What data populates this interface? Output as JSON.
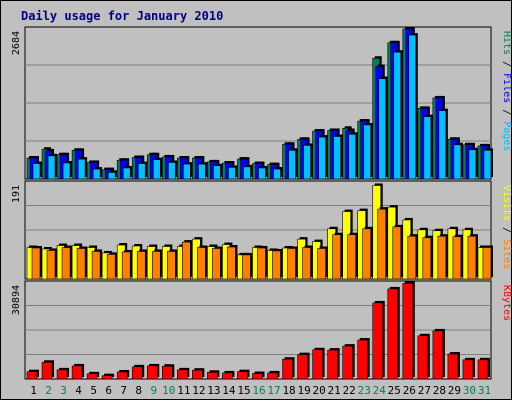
{
  "title": "Daily usage for January 2010",
  "colors": {
    "background": "#c0c0c0",
    "panel": "#c0c0c0",
    "grid": "#808080",
    "title": "#000080",
    "hits": "#00805c",
    "files": "#0000ff",
    "pages": "#00c0ff",
    "visits": "#ffff00",
    "sites": "#ff8000",
    "kbytes": "#ff0000",
    "weekend_day": "#00805c",
    "weekday": "#000000"
  },
  "chart_data": [
    {
      "type": "bar",
      "panel": "top",
      "ymax_label": "2684",
      "ylim": [
        0,
        2684
      ],
      "axis_legend": [
        {
          "text": "Pages",
          "color_key": "pages"
        },
        {
          "text": " / ",
          "color_key": "weekday"
        },
        {
          "text": "Files",
          "color_key": "files"
        },
        {
          "text": " / ",
          "color_key": "weekday"
        },
        {
          "text": "Hits",
          "color_key": "hits"
        }
      ],
      "categories": [
        "1",
        "2",
        "3",
        "4",
        "5",
        "6",
        "7",
        "8",
        "9",
        "10",
        "11",
        "12",
        "13",
        "14",
        "15",
        "16",
        "17",
        "18",
        "19",
        "20",
        "21",
        "22",
        "23",
        "24",
        "25",
        "26",
        "27",
        "28",
        "29",
        "30",
        "31"
      ],
      "series": [
        {
          "name": "Hits",
          "color_key": "hits",
          "values": [
            380,
            540,
            440,
            520,
            300,
            170,
            340,
            390,
            440,
            400,
            380,
            380,
            310,
            290,
            360,
            280,
            260,
            630,
            720,
            870,
            880,
            920,
            1050,
            2190,
            2470,
            2720,
            1280,
            1470,
            720,
            620,
            600
          ]
        },
        {
          "name": "Files",
          "color_key": "files",
          "values": [
            380,
            510,
            440,
            520,
            300,
            170,
            340,
            390,
            440,
            400,
            380,
            380,
            310,
            290,
            360,
            280,
            260,
            630,
            720,
            870,
            880,
            880,
            1050,
            2040,
            2470,
            2720,
            1280,
            1470,
            720,
            620,
            600
          ]
        },
        {
          "name": "Pages",
          "color_key": "pages",
          "values": [
            280,
            420,
            290,
            360,
            180,
            120,
            200,
            280,
            350,
            300,
            270,
            270,
            240,
            210,
            220,
            200,
            180,
            520,
            610,
            760,
            770,
            810,
            980,
            1820,
            2300,
            2610,
            1130,
            1240,
            620,
            530,
            520
          ]
        }
      ]
    },
    {
      "type": "bar",
      "panel": "middle",
      "ymax_label": "191",
      "ylim": [
        0,
        191
      ],
      "axis_legend": [
        {
          "text": "Sites",
          "color_key": "sites"
        },
        {
          "text": " / ",
          "color_key": "weekday"
        },
        {
          "text": "Visits",
          "color_key": "visits"
        }
      ],
      "categories": [
        "1",
        "2",
        "3",
        "4",
        "5",
        "6",
        "7",
        "8",
        "9",
        "10",
        "11",
        "12",
        "13",
        "14",
        "15",
        "16",
        "17",
        "18",
        "19",
        "20",
        "21",
        "22",
        "23",
        "24",
        "25",
        "26",
        "27",
        "28",
        "29",
        "30",
        "31"
      ],
      "series": [
        {
          "name": "Visits",
          "color_key": "visits",
          "values": [
            64,
            61,
            68,
            68,
            64,
            53,
            69,
            67,
            66,
            66,
            66,
            81,
            66,
            70,
            49,
            64,
            58,
            63,
            81,
            76,
            102,
            137,
            139,
            190,
            146,
            120,
            100,
            98,
            102,
            100,
            64
          ]
        },
        {
          "name": "Sites",
          "color_key": "sites",
          "values": [
            63,
            58,
            64,
            62,
            56,
            50,
            55,
            56,
            56,
            56,
            75,
            64,
            62,
            65,
            49,
            63,
            57,
            62,
            64,
            62,
            90,
            90,
            102,
            142,
            106,
            87,
            84,
            87,
            86,
            87,
            64
          ]
        }
      ]
    },
    {
      "type": "bar",
      "panel": "bottom",
      "ymax_label": "30894",
      "ylim": [
        0,
        30894
      ],
      "axis_legend": [
        {
          "text": "KBytes",
          "color_key": "kbytes"
        }
      ],
      "categories": [
        "1",
        "2",
        "3",
        "4",
        "5",
        "6",
        "7",
        "8",
        "9",
        "10",
        "11",
        "12",
        "13",
        "14",
        "15",
        "16",
        "17",
        "18",
        "19",
        "20",
        "21",
        "22",
        "23",
        "24",
        "25",
        "26",
        "27",
        "28",
        "29",
        "30",
        "31"
      ],
      "series": [
        {
          "name": "KBytes",
          "color_key": "kbytes",
          "values": [
            2400,
            5500,
            3000,
            4300,
            1700,
            1100,
            2300,
            4000,
            4300,
            4200,
            3000,
            2900,
            2200,
            2000,
            2400,
            1800,
            2000,
            6500,
            8000,
            9600,
            9500,
            10800,
            12800,
            25000,
            29600,
            31400,
            14200,
            15800,
            8200,
            6300,
            6300
          ]
        }
      ]
    }
  ],
  "days": [
    {
      "label": "1",
      "weekend": false
    },
    {
      "label": "2",
      "weekend": true
    },
    {
      "label": "3",
      "weekend": true
    },
    {
      "label": "4",
      "weekend": false
    },
    {
      "label": "5",
      "weekend": false
    },
    {
      "label": "6",
      "weekend": false
    },
    {
      "label": "7",
      "weekend": false
    },
    {
      "label": "8",
      "weekend": false
    },
    {
      "label": "9",
      "weekend": true
    },
    {
      "label": "10",
      "weekend": true
    },
    {
      "label": "11",
      "weekend": false
    },
    {
      "label": "12",
      "weekend": false
    },
    {
      "label": "13",
      "weekend": false
    },
    {
      "label": "14",
      "weekend": false
    },
    {
      "label": "15",
      "weekend": false
    },
    {
      "label": "16",
      "weekend": true
    },
    {
      "label": "17",
      "weekend": true
    },
    {
      "label": "18",
      "weekend": false
    },
    {
      "label": "19",
      "weekend": false
    },
    {
      "label": "20",
      "weekend": false
    },
    {
      "label": "21",
      "weekend": false
    },
    {
      "label": "22",
      "weekend": false
    },
    {
      "label": "23",
      "weekend": true
    },
    {
      "label": "24",
      "weekend": true
    },
    {
      "label": "25",
      "weekend": false
    },
    {
      "label": "26",
      "weekend": false
    },
    {
      "label": "27",
      "weekend": false
    },
    {
      "label": "28",
      "weekend": false
    },
    {
      "label": "29",
      "weekend": false
    },
    {
      "label": "30",
      "weekend": true
    },
    {
      "label": "31",
      "weekend": true
    }
  ]
}
